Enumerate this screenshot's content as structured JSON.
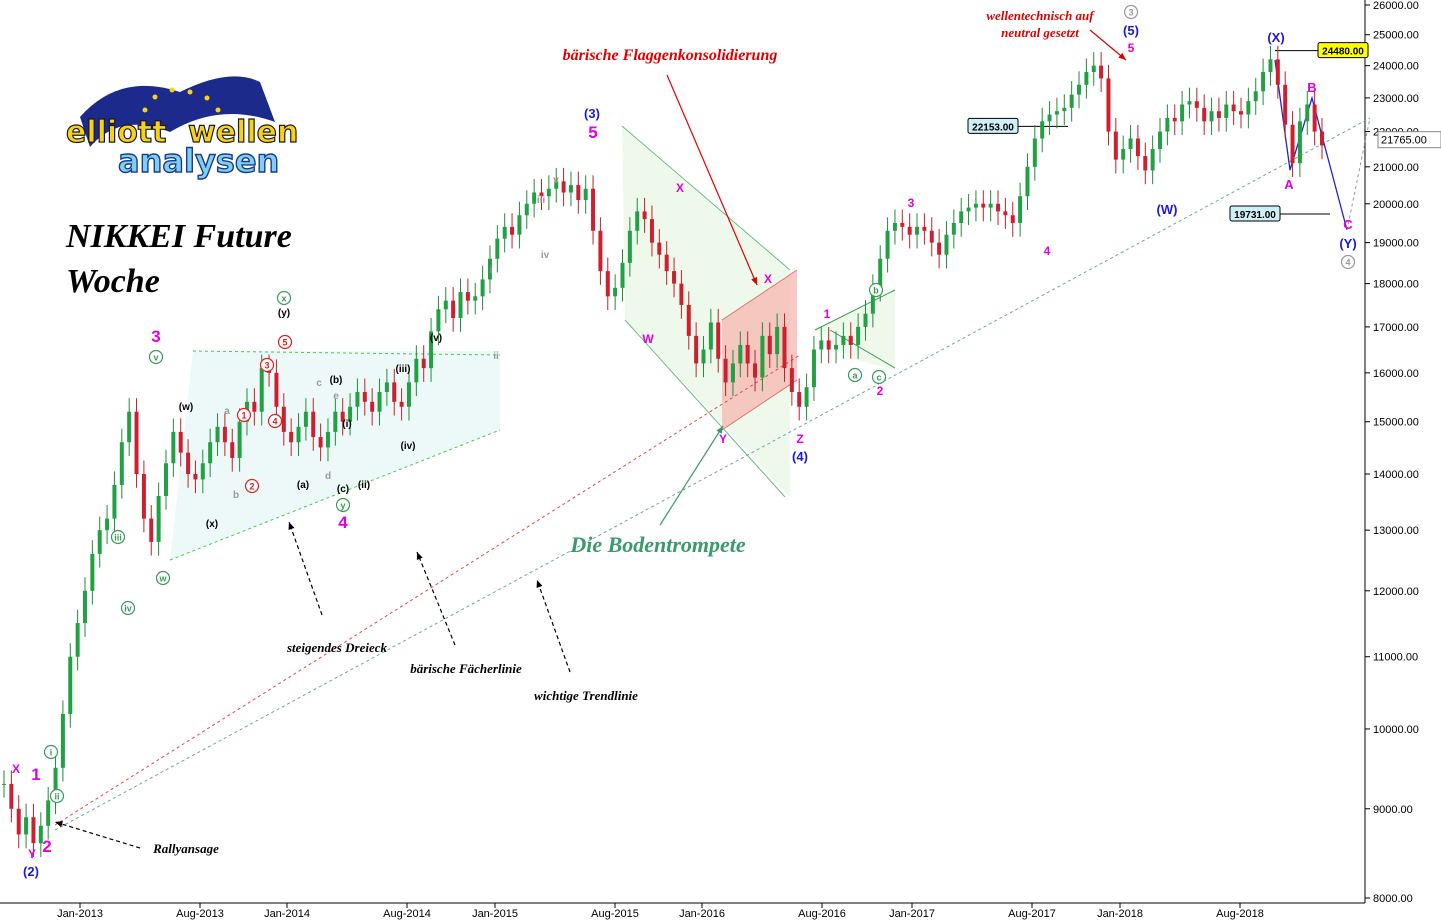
{
  "chart_data": {
    "type": "candlestick",
    "title": "NIKKEI Future",
    "subtitle": "Woche",
    "logo_text": [
      "elliott",
      "wellen",
      "analysen"
    ],
    "ylim": [
      8000,
      26000
    ],
    "y_scale": "log",
    "y_ticks": [
      "8000.00",
      "9000.00",
      "10000.00",
      "11000.00",
      "12000.00",
      "13000.00",
      "14000.00",
      "15000.00",
      "16000.00",
      "17000.00",
      "18000.00",
      "19000.00",
      "20000.00",
      "21000.00",
      "22000.00",
      "23000.00",
      "24000.00",
      "25000.00",
      "26000.00"
    ],
    "x_ticks": [
      "Jan-2013",
      "Aug-2013",
      "Jan-2014",
      "Aug-2014",
      "Jan-2015",
      "Aug-2015",
      "Jan-2016",
      "Aug-2016",
      "Jan-2017",
      "Aug-2017",
      "Jan-2018",
      "Aug-2018"
    ],
    "last_price": "21765.00",
    "price_boxes": [
      {
        "text": "24480.00",
        "value": 24480,
        "color": "#ffff00"
      },
      {
        "text": "22153.00",
        "value": 22153,
        "color": "#cfeff7"
      },
      {
        "text": "19731.00",
        "value": 19731,
        "color": "#cfeff7"
      }
    ],
    "wave_labels": [
      {
        "t": "X",
        "c": "#e000e0"
      },
      {
        "t": "1",
        "c": "#e000e0"
      },
      {
        "t": "Y",
        "c": "#e000e0"
      },
      {
        "t": "2",
        "c": "#e000e0"
      },
      {
        "t": "(2)",
        "c": "#1a1ad8"
      },
      {
        "t": "3",
        "c": "#e000e0"
      },
      {
        "t": "4",
        "c": "#e000e0"
      },
      {
        "t": "(3)",
        "c": "#1a1ad8"
      },
      {
        "t": "5",
        "c": "#e000e0"
      },
      {
        "t": "W",
        "c": "#e000e0"
      },
      {
        "t": "X",
        "c": "#e000e0"
      },
      {
        "t": "Y",
        "c": "#e000e0"
      },
      {
        "t": "X",
        "c": "#e000e0"
      },
      {
        "t": "Z",
        "c": "#e000e0"
      },
      {
        "t": "(4)",
        "c": "#1a1ad8"
      },
      {
        "t": "1",
        "c": "#e000e0"
      },
      {
        "t": "2",
        "c": "#e000e0"
      },
      {
        "t": "3",
        "c": "#e000e0"
      },
      {
        "t": "4",
        "c": "#e000e0"
      },
      {
        "t": "5",
        "c": "#e000e0"
      },
      {
        "t": "(5)",
        "c": "#1a1ad8"
      },
      {
        "t": "(W)",
        "c": "#1a1ad8"
      },
      {
        "t": "(X)",
        "c": "#1a1ad8"
      },
      {
        "t": "A",
        "c": "#e000e0"
      },
      {
        "t": "B",
        "c": "#e000e0"
      },
      {
        "t": "C",
        "c": "#e000e0"
      },
      {
        "t": "(Y)",
        "c": "#1a1ad8"
      },
      {
        "t": "(w)",
        "c": "#000"
      },
      {
        "t": "(x)",
        "c": "#000"
      },
      {
        "t": "(y)",
        "c": "#000"
      },
      {
        "t": "(a)",
        "c": "#000"
      },
      {
        "t": "(b)",
        "c": "#000"
      },
      {
        "t": "(c)",
        "c": "#000"
      },
      {
        "t": "(i)",
        "c": "#000"
      },
      {
        "t": "(ii)",
        "c": "#000"
      },
      {
        "t": "(iii)",
        "c": "#000"
      },
      {
        "t": "(iv)",
        "c": "#000"
      },
      {
        "t": "(v)",
        "c": "#000"
      },
      {
        "t": "a",
        "c": "#999"
      },
      {
        "t": "b",
        "c": "#999"
      },
      {
        "t": "c",
        "c": "#999"
      },
      {
        "t": "d",
        "c": "#999"
      },
      {
        "t": "e",
        "c": "#999"
      },
      {
        "t": "i",
        "c": "#999"
      },
      {
        "t": "ii",
        "c": "#999"
      },
      {
        "t": "iii",
        "c": "#999"
      },
      {
        "t": "iv",
        "c": "#999"
      },
      {
        "t": "v",
        "c": "#999"
      }
    ],
    "circled_labels": [
      {
        "t": "i",
        "c": "#3a9a5a"
      },
      {
        "t": "ii",
        "c": "#3a9a5a"
      },
      {
        "t": "iii",
        "c": "#3a9a5a"
      },
      {
        "t": "iv",
        "c": "#3a9a5a"
      },
      {
        "t": "v",
        "c": "#3a9a5a"
      },
      {
        "t": "w",
        "c": "#3a9a5a"
      },
      {
        "t": "x",
        "c": "#3a9a5a"
      },
      {
        "t": "y",
        "c": "#3a9a5a"
      },
      {
        "t": "a",
        "c": "#3a9a5a"
      },
      {
        "t": "b",
        "c": "#3a9a5a"
      },
      {
        "t": "c",
        "c": "#3a9a5a"
      },
      {
        "t": "1",
        "c": "#e02020"
      },
      {
        "t": "2",
        "c": "#e02020"
      },
      {
        "t": "3",
        "c": "#e02020"
      },
      {
        "t": "4",
        "c": "#e02020"
      },
      {
        "t": "5",
        "c": "#e02020"
      },
      {
        "t": "3",
        "c": "#999"
      },
      {
        "t": "4",
        "c": "#999"
      }
    ],
    "annotations": [
      {
        "text": "bärische Flaggenkonsolidierung",
        "color": "#e00000"
      },
      {
        "text": "wellentechnisch auf",
        "color": "#e00000"
      },
      {
        "text": "neutral gesetzt",
        "color": "#e00000"
      },
      {
        "text": "Die Bodentrompete",
        "color": "#3a9a6a"
      },
      {
        "text": "steigendes Dreieck",
        "color": "#000"
      },
      {
        "text": "bärische Fächerlinie",
        "color": "#000"
      },
      {
        "text": "wichtige Trendlinie",
        "color": "#000"
      },
      {
        "text": "Rallyansage",
        "color": "#000"
      }
    ],
    "series": [
      {
        "name": "weekly close",
        "close": [
          9300,
          9000,
          8700,
          8900,
          8600,
          8800,
          9100,
          9500,
          10200,
          11000,
          11500,
          12000,
          12600,
          13000,
          13200,
          13800,
          14600,
          15200,
          14000,
          13200,
          12800,
          13600,
          14200,
          14800,
          14400,
          14000,
          13900,
          14200,
          14600,
          14900,
          14600,
          14300,
          15000,
          15400,
          15200,
          16100,
          16000,
          15300,
          14800,
          14600,
          14900,
          15200,
          14700,
          14500,
          14800,
          15200,
          15000,
          15300,
          15600,
          15400,
          15200,
          15600,
          15800,
          15400,
          15300,
          15800,
          16300,
          16100,
          16900,
          17400,
          17600,
          17200,
          17800,
          17600,
          17700,
          18100,
          18600,
          19100,
          19400,
          19200,
          19700,
          20000,
          20300,
          20200,
          20400,
          20600,
          20300,
          20500,
          20100,
          20400,
          19300,
          18300,
          17700,
          17900,
          18500,
          19300,
          19800,
          19600,
          19000,
          18700,
          18300,
          18000,
          17500,
          16800,
          16200,
          16500,
          17100,
          16300,
          15800,
          16200,
          16600,
          16200,
          15900,
          16800,
          16400,
          17000,
          16100,
          15600,
          15300,
          15700,
          16500,
          16700,
          16500,
          16600,
          16800,
          16600,
          17000,
          17300,
          17900,
          18600,
          19300,
          19500,
          19400,
          19200,
          19400,
          19300,
          19000,
          18700,
          19200,
          19500,
          19800,
          19900,
          20000,
          19900,
          20000,
          19800,
          19700,
          19500,
          20200,
          21000,
          21800,
          22300,
          22500,
          22600,
          22700,
          23100,
          23400,
          23800,
          24000,
          23600,
          22000,
          21200,
          21500,
          21800,
          21300,
          20900,
          21500,
          22000,
          22400,
          22300,
          22800,
          22900,
          22700,
          22300,
          22600,
          22400,
          22800,
          22600,
          22500,
          22900,
          23200,
          23800,
          24200,
          23400,
          22200,
          21100,
          22300,
          22800,
          22000,
          21600
        ]
      }
    ]
  }
}
